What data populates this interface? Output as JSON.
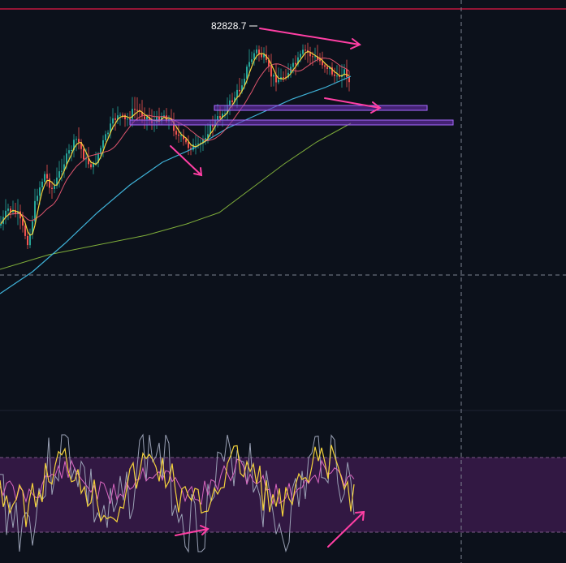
{
  "chart_data": [
    {
      "type": "candlestick",
      "title": "",
      "annotations": [
        {
          "kind": "price-label",
          "text": "82828.7"
        }
      ],
      "highlighted_high": 82828.7,
      "grid": false,
      "moving_averages": [
        {
          "color": "#f5d33c"
        },
        {
          "color": "#e0556e"
        },
        {
          "color": "#3fb2d8"
        },
        {
          "color": "#7fae3a"
        }
      ],
      "support_zones": 2,
      "trend_arrows": 3
    },
    {
      "type": "line",
      "title": "",
      "overbought_band": true,
      "series": [
        {
          "color": "#f5d33c"
        },
        {
          "color": "#d966c0"
        },
        {
          "color": "#9aa1b5"
        }
      ],
      "trend_arrows": 2
    }
  ],
  "colors": {
    "background": "#0c111b",
    "up_candle": "#26a69a",
    "down_candle": "#ef5350",
    "zone_fill": "#6a2fb0",
    "zone_stroke": "#a86bff",
    "arrow": "#ff3fa4",
    "top_line": "#c0173f",
    "crosshair": "#7d8290",
    "oscillator_band": "#3a1a4a"
  }
}
